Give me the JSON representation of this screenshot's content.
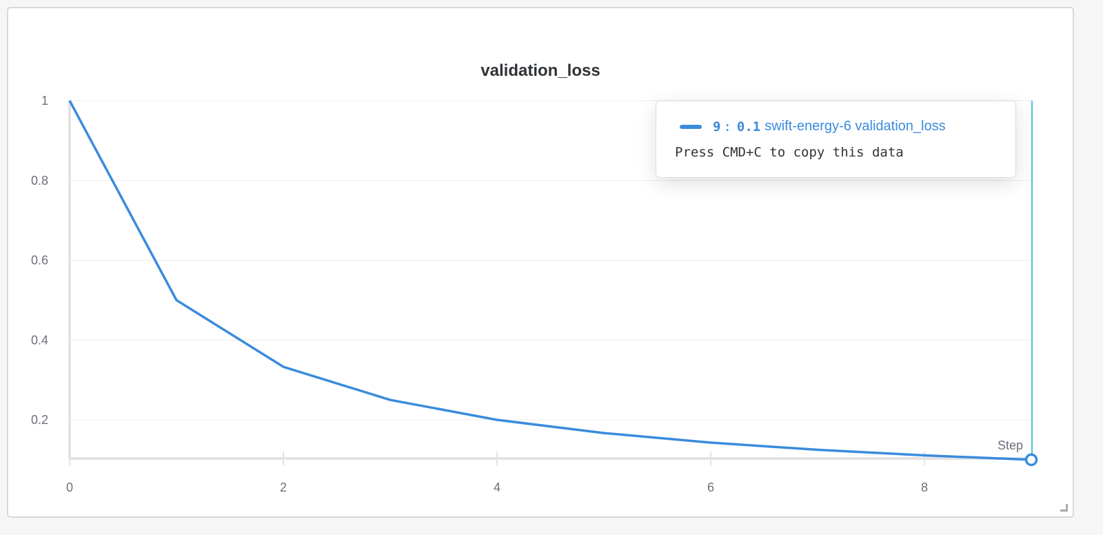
{
  "chart_data": {
    "type": "line",
    "title": "validation_loss",
    "xlabel": "Step",
    "ylabel": "",
    "x": [
      0,
      1,
      2,
      3,
      4,
      5,
      6,
      7,
      8,
      9
    ],
    "series": [
      {
        "name": "swift-energy-6 validation_loss",
        "color": "#3a8bdc",
        "values": [
          1.0,
          0.5,
          0.333,
          0.25,
          0.2,
          0.167,
          0.143,
          0.125,
          0.111,
          0.1
        ]
      }
    ],
    "xlim": [
      0,
      9
    ],
    "ylim": [
      0.1,
      1
    ],
    "xticks": [
      "0",
      "2",
      "4",
      "6",
      "8"
    ],
    "yticks": [
      "0.2",
      "0.4",
      "0.6",
      "0.8",
      "1"
    ],
    "grid": true,
    "legend": "none"
  },
  "tooltip": {
    "step": "9",
    "sep": ":",
    "value": "0.1",
    "series_label": "swift-energy-6 validation_loss",
    "hint": "Press CMD+C to copy this data",
    "hover_line_color": "#3ec9d6"
  }
}
